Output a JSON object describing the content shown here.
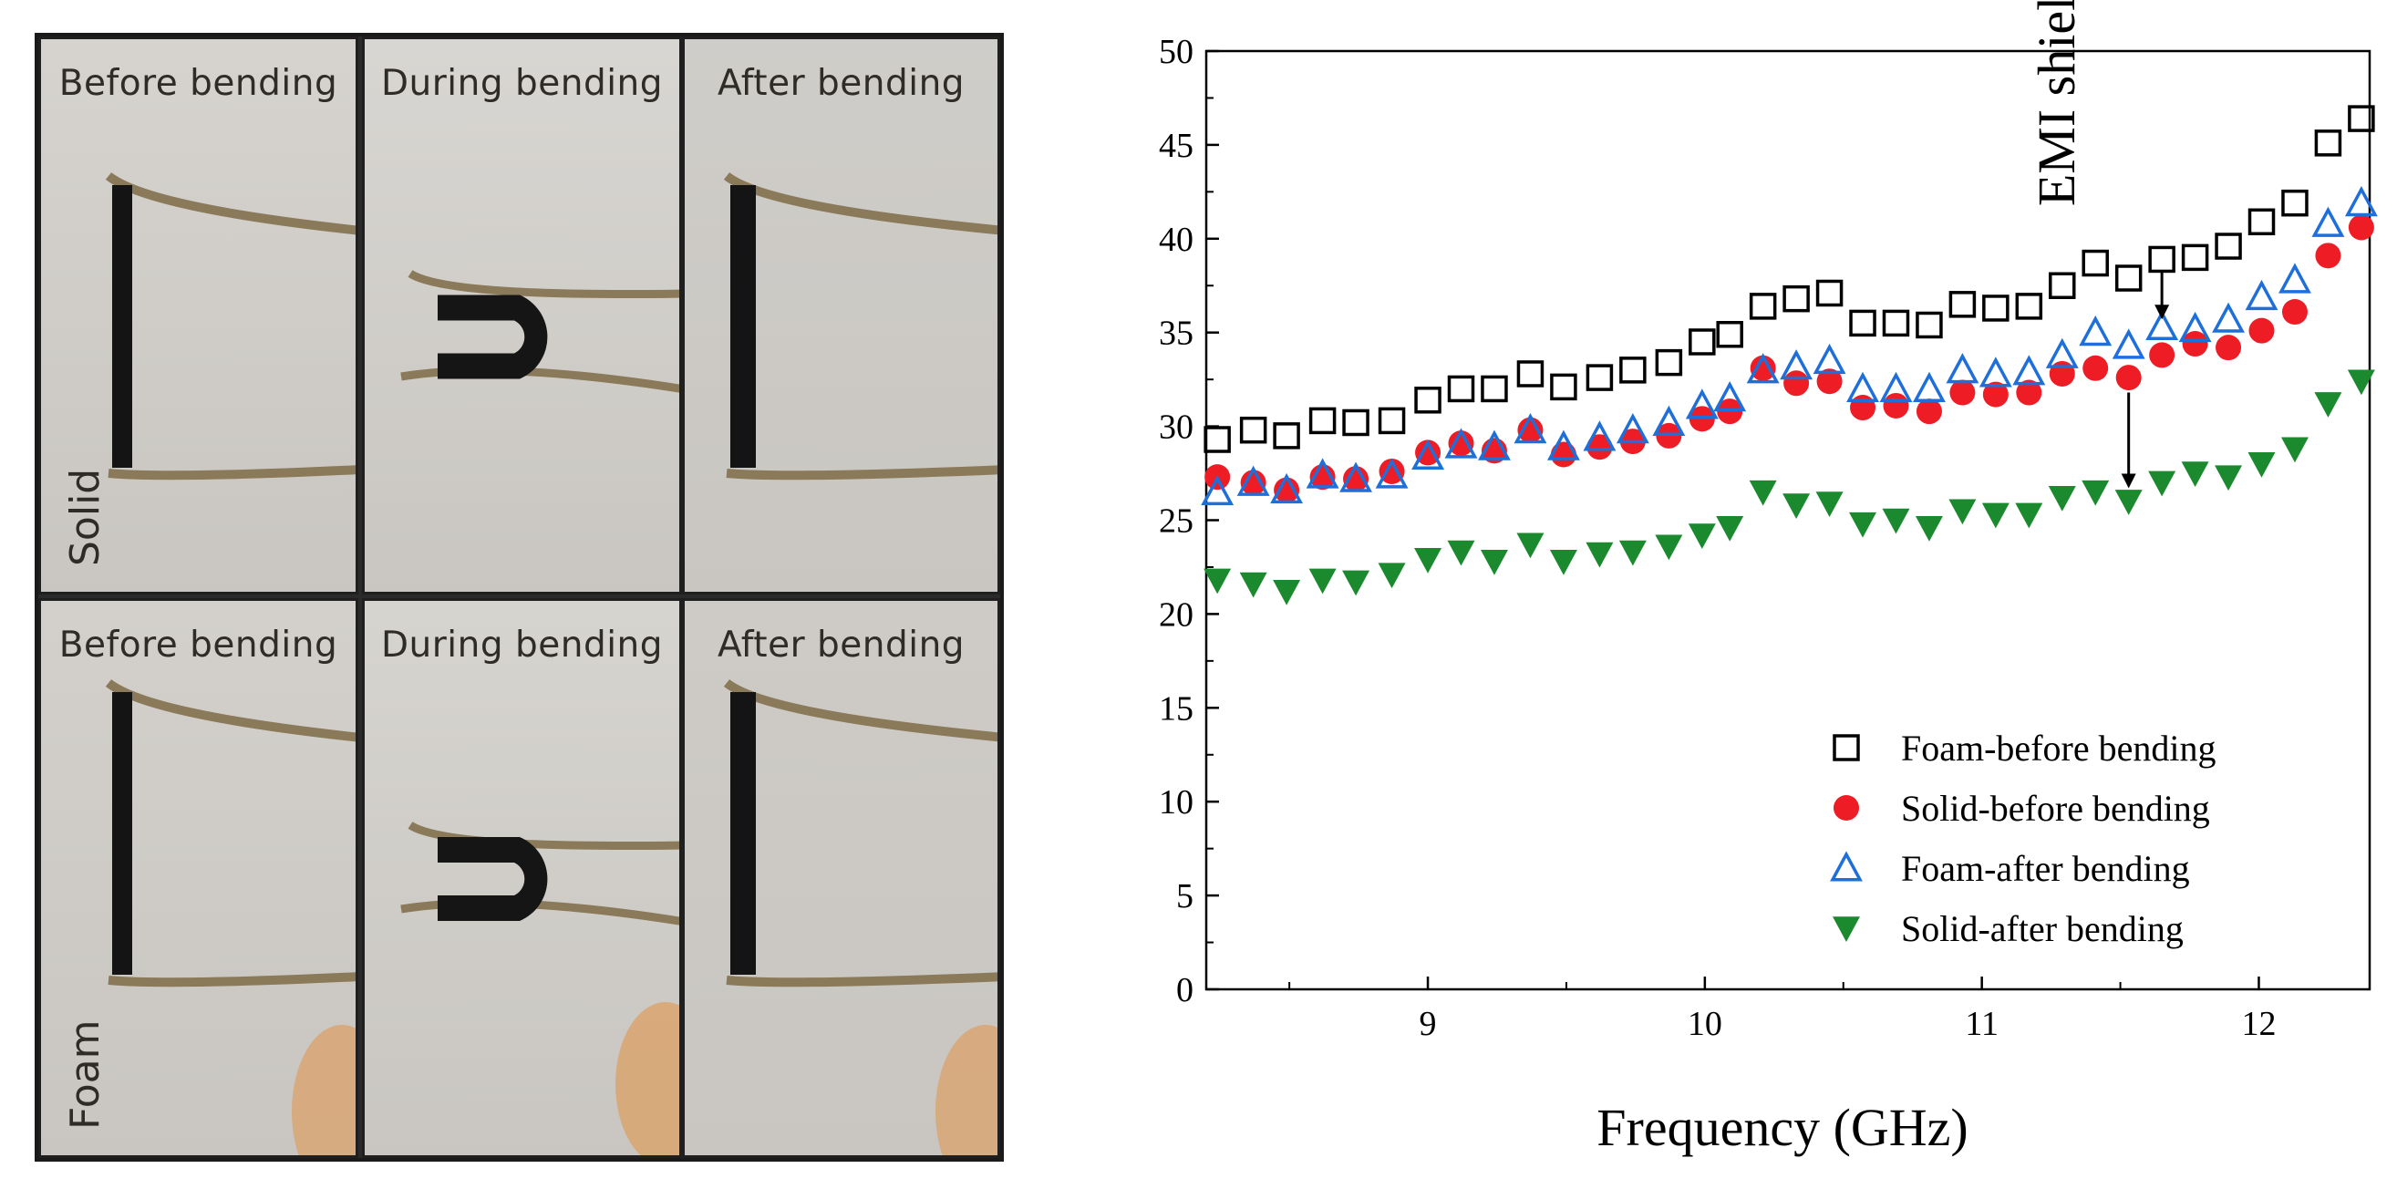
{
  "photos": {
    "rows": [
      {
        "side_label": "Solid",
        "cells": [
          "Before bending",
          "During bending",
          "After bending"
        ]
      },
      {
        "side_label": "Foam",
        "cells": [
          "Before bending",
          "During bending",
          "After bending"
        ]
      }
    ]
  },
  "chart_data": {
    "type": "scatter",
    "xlabel": "Frequency (GHz)",
    "ylabel": "EMI shielding (dB)",
    "xlim": [
      8.2,
      12.4
    ],
    "ylim": [
      0,
      50
    ],
    "xticks": [
      9,
      10,
      11,
      12
    ],
    "yticks": [
      0,
      5,
      10,
      15,
      20,
      25,
      30,
      35,
      40,
      45,
      50
    ],
    "legend_position": "bottom-right",
    "x": [
      8.24,
      8.37,
      8.49,
      8.62,
      8.74,
      8.87,
      9.0,
      9.12,
      9.24,
      9.37,
      9.49,
      9.62,
      9.74,
      9.87,
      9.99,
      10.09,
      10.21,
      10.33,
      10.45,
      10.57,
      10.69,
      10.81,
      10.93,
      11.05,
      11.17,
      11.29,
      11.41,
      11.53,
      11.65,
      11.77,
      11.89,
      12.01,
      12.13,
      12.25,
      12.37
    ],
    "series": [
      {
        "name": "Foam-before bending",
        "marker": "open-square",
        "color": "#000000",
        "values": [
          29.3,
          29.8,
          29.5,
          30.3,
          30.2,
          30.3,
          31.4,
          32.0,
          32.0,
          32.8,
          32.1,
          32.6,
          33.0,
          33.4,
          34.5,
          34.9,
          36.4,
          36.8,
          37.1,
          35.5,
          35.5,
          35.4,
          36.5,
          36.3,
          36.4,
          37.5,
          38.7,
          37.9,
          38.9,
          39.0,
          39.6,
          40.9,
          41.9,
          45.1,
          46.4
        ]
      },
      {
        "name": "Solid-before bending",
        "marker": "filled-circle",
        "color": "#ee1c25",
        "values": [
          27.3,
          27.0,
          26.6,
          27.3,
          27.2,
          27.6,
          28.6,
          29.1,
          28.7,
          29.8,
          28.5,
          28.9,
          29.2,
          29.5,
          30.4,
          30.8,
          33.1,
          32.3,
          32.4,
          31.0,
          31.1,
          30.8,
          31.8,
          31.7,
          31.8,
          32.8,
          33.1,
          32.6,
          33.8,
          34.4,
          34.2,
          35.1,
          36.1,
          39.1,
          40.6
        ]
      },
      {
        "name": "Foam-after bending",
        "marker": "open-triangle-up",
        "color": "#1e6fd9",
        "values": [
          26.5,
          27.0,
          26.6,
          27.4,
          27.2,
          27.4,
          28.4,
          29.0,
          28.9,
          29.8,
          28.9,
          29.4,
          29.8,
          30.2,
          31.1,
          31.5,
          33.0,
          33.2,
          33.5,
          32.0,
          32.0,
          32.0,
          33.0,
          32.8,
          32.9,
          33.8,
          35.0,
          34.3,
          35.3,
          35.2,
          35.7,
          36.9,
          37.8,
          40.8,
          41.9
        ]
      },
      {
        "name": "Solid-after bending",
        "marker": "filled-triangle-down",
        "color": "#1b8a2e",
        "values": [
          21.8,
          21.6,
          21.2,
          21.8,
          21.7,
          22.1,
          22.9,
          23.3,
          22.8,
          23.7,
          22.8,
          23.2,
          23.3,
          23.6,
          24.2,
          24.6,
          26.5,
          25.8,
          25.9,
          24.8,
          25.0,
          24.6,
          25.5,
          25.3,
          25.3,
          26.2,
          26.5,
          26.0,
          27.0,
          27.5,
          27.3,
          28.0,
          28.8,
          31.2,
          32.4
        ]
      }
    ],
    "annotations": [
      {
        "type": "arrow",
        "x": 11.65,
        "y_from": 38.3,
        "y_to": 35.8
      },
      {
        "type": "arrow",
        "x": 11.53,
        "y_from": 31.8,
        "y_to": 26.8
      }
    ]
  }
}
